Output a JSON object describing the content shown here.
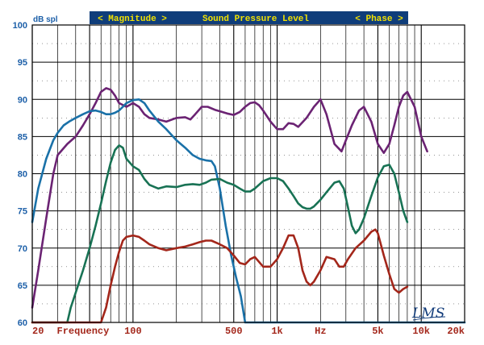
{
  "chart_data": {
    "type": "line",
    "x_scale": "log",
    "xlim": [
      20,
      20000
    ],
    "ylim": [
      60,
      100
    ],
    "ylabel": "dB spl",
    "y_ticks": [
      60,
      65,
      70,
      75,
      80,
      85,
      90,
      95,
      100
    ],
    "x_ticks": [
      {
        "label": "20",
        "x": 20
      },
      {
        "label": "Frequency",
        "x": 45
      },
      {
        "label": "100",
        "x": 100
      },
      {
        "label": "500",
        "x": 500
      },
      {
        "label": "1k",
        "x": 1000
      },
      {
        "label": "Hz",
        "x": 2000
      },
      {
        "label": "5k",
        "x": 5000
      },
      {
        "label": "10k",
        "x": 10000
      },
      {
        "label": "20k",
        "x": 20000
      }
    ],
    "banner": {
      "left": "< Magnitude >",
      "center": "Sound Pressure Level",
      "right": "< Phase >"
    },
    "logo": "LMS",
    "grid": true,
    "colors": {
      "background": "#ffffff",
      "grid": "#000000",
      "axis_labels": "#1c5fa8",
      "x_labels": "#a3261a",
      "banner_bg": "#0f3d7a",
      "banner_text": "#f2e200"
    },
    "series": [
      {
        "color": "#6b2373",
        "points": [
          [
            20,
            62
          ],
          [
            22,
            67
          ],
          [
            25,
            74
          ],
          [
            28,
            80
          ],
          [
            30,
            82.5
          ],
          [
            35,
            84
          ],
          [
            40,
            85
          ],
          [
            45,
            86.5
          ],
          [
            50,
            88
          ],
          [
            55,
            89.5
          ],
          [
            60,
            91
          ],
          [
            65,
            91.5
          ],
          [
            70,
            91.3
          ],
          [
            75,
            90.5
          ],
          [
            80,
            89.5
          ],
          [
            90,
            89
          ],
          [
            100,
            89.5
          ],
          [
            110,
            89
          ],
          [
            120,
            88
          ],
          [
            130,
            87.5
          ],
          [
            150,
            87.3
          ],
          [
            170,
            87
          ],
          [
            200,
            87.5
          ],
          [
            230,
            87.6
          ],
          [
            250,
            87.3
          ],
          [
            270,
            88
          ],
          [
            300,
            89
          ],
          [
            330,
            89
          ],
          [
            370,
            88.6
          ],
          [
            400,
            88.4
          ],
          [
            450,
            88.1
          ],
          [
            500,
            87.9
          ],
          [
            550,
            88.3
          ],
          [
            600,
            89
          ],
          [
            650,
            89.5
          ],
          [
            700,
            89.6
          ],
          [
            750,
            89.2
          ],
          [
            800,
            88.5
          ],
          [
            900,
            87
          ],
          [
            1000,
            86
          ],
          [
            1100,
            86
          ],
          [
            1200,
            86.8
          ],
          [
            1300,
            86.7
          ],
          [
            1400,
            86.3
          ],
          [
            1600,
            87.5
          ],
          [
            1800,
            89
          ],
          [
            2000,
            90
          ],
          [
            2200,
            88
          ],
          [
            2500,
            84
          ],
          [
            2800,
            83
          ],
          [
            3000,
            84.5
          ],
          [
            3300,
            86.5
          ],
          [
            3700,
            88.5
          ],
          [
            4000,
            89
          ],
          [
            4500,
            87
          ],
          [
            5000,
            84
          ],
          [
            5500,
            82.8
          ],
          [
            6000,
            84
          ],
          [
            6500,
            86.5
          ],
          [
            7000,
            89
          ],
          [
            7500,
            90.5
          ],
          [
            8000,
            91
          ],
          [
            9000,
            89
          ],
          [
            10000,
            85
          ],
          [
            11000,
            83
          ]
        ]
      },
      {
        "color": "#1a71a8",
        "points": [
          [
            20,
            73.5
          ],
          [
            22,
            78
          ],
          [
            25,
            82
          ],
          [
            28,
            84.5
          ],
          [
            30,
            85.5
          ],
          [
            33,
            86.5
          ],
          [
            36,
            87
          ],
          [
            40,
            87.5
          ],
          [
            45,
            88
          ],
          [
            50,
            88.4
          ],
          [
            55,
            88.5
          ],
          [
            60,
            88.3
          ],
          [
            65,
            88
          ],
          [
            70,
            88
          ],
          [
            75,
            88.2
          ],
          [
            80,
            88.5
          ],
          [
            85,
            89
          ],
          [
            90,
            89.5
          ],
          [
            100,
            89.9
          ],
          [
            110,
            90
          ],
          [
            120,
            89.5
          ],
          [
            130,
            88.5
          ],
          [
            150,
            87
          ],
          [
            170,
            86
          ],
          [
            200,
            84.5
          ],
          [
            230,
            83.5
          ],
          [
            260,
            82.5
          ],
          [
            290,
            82
          ],
          [
            320,
            81.8
          ],
          [
            350,
            81.7
          ],
          [
            370,
            81
          ],
          [
            400,
            78
          ],
          [
            440,
            73
          ],
          [
            480,
            69
          ],
          [
            520,
            66
          ],
          [
            560,
            63.5
          ],
          [
            600,
            60
          ],
          [
            620,
            60
          ],
          [
            20000,
            60
          ]
        ]
      },
      {
        "color": "#187254",
        "points": [
          [
            20,
            60
          ],
          [
            30,
            60
          ],
          [
            35,
            60
          ],
          [
            37,
            62
          ],
          [
            40,
            64
          ],
          [
            45,
            67
          ],
          [
            50,
            70
          ],
          [
            55,
            73
          ],
          [
            60,
            76
          ],
          [
            65,
            79
          ],
          [
            70,
            81.5
          ],
          [
            75,
            83.2
          ],
          [
            80,
            83.8
          ],
          [
            85,
            83.5
          ],
          [
            90,
            82
          ],
          [
            100,
            81
          ],
          [
            110,
            80.5
          ],
          [
            120,
            79.3
          ],
          [
            130,
            78.5
          ],
          [
            150,
            78
          ],
          [
            170,
            78.3
          ],
          [
            200,
            78.2
          ],
          [
            230,
            78.5
          ],
          [
            260,
            78.6
          ],
          [
            290,
            78.5
          ],
          [
            320,
            78.8
          ],
          [
            350,
            79.2
          ],
          [
            400,
            79.3
          ],
          [
            450,
            78.8
          ],
          [
            500,
            78.5
          ],
          [
            550,
            78
          ],
          [
            600,
            77.6
          ],
          [
            650,
            77.6
          ],
          [
            700,
            78
          ],
          [
            800,
            79
          ],
          [
            900,
            79.4
          ],
          [
            1000,
            79.4
          ],
          [
            1100,
            79
          ],
          [
            1200,
            78
          ],
          [
            1300,
            77
          ],
          [
            1400,
            76
          ],
          [
            1500,
            75.5
          ],
          [
            1600,
            75.3
          ],
          [
            1700,
            75.3
          ],
          [
            1800,
            75.6
          ],
          [
            2000,
            76.5
          ],
          [
            2200,
            77.5
          ],
          [
            2500,
            78.8
          ],
          [
            2700,
            79
          ],
          [
            2900,
            78
          ],
          [
            3100,
            75.5
          ],
          [
            3300,
            73
          ],
          [
            3500,
            72
          ],
          [
            3700,
            72.5
          ],
          [
            4000,
            74
          ],
          [
            4500,
            77
          ],
          [
            5000,
            79.5
          ],
          [
            5500,
            81
          ],
          [
            6000,
            81.2
          ],
          [
            6500,
            80
          ],
          [
            7000,
            77.5
          ],
          [
            7500,
            75
          ],
          [
            8000,
            73.5
          ]
        ]
      },
      {
        "color": "#a3261a",
        "points": [
          [
            20,
            60
          ],
          [
            40,
            60
          ],
          [
            60,
            60
          ],
          [
            65,
            62
          ],
          [
            70,
            65
          ],
          [
            75,
            67.5
          ],
          [
            80,
            69.5
          ],
          [
            85,
            71
          ],
          [
            90,
            71.5
          ],
          [
            100,
            71.7
          ],
          [
            110,
            71.5
          ],
          [
            120,
            71
          ],
          [
            130,
            70.5
          ],
          [
            150,
            70
          ],
          [
            170,
            69.7
          ],
          [
            200,
            70
          ],
          [
            230,
            70.2
          ],
          [
            260,
            70.5
          ],
          [
            290,
            70.8
          ],
          [
            320,
            71
          ],
          [
            350,
            71
          ],
          [
            400,
            70.5
          ],
          [
            450,
            70
          ],
          [
            500,
            69
          ],
          [
            550,
            68
          ],
          [
            600,
            67.8
          ],
          [
            650,
            68.5
          ],
          [
            700,
            68.8
          ],
          [
            800,
            67.5
          ],
          [
            900,
            67.5
          ],
          [
            1000,
            68.5
          ],
          [
            1100,
            70
          ],
          [
            1200,
            71.7
          ],
          [
            1300,
            71.7
          ],
          [
            1400,
            70
          ],
          [
            1500,
            67
          ],
          [
            1600,
            65.5
          ],
          [
            1700,
            65
          ],
          [
            1800,
            65.5
          ],
          [
            2000,
            67
          ],
          [
            2200,
            68.8
          ],
          [
            2500,
            68.5
          ],
          [
            2700,
            67.5
          ],
          [
            2900,
            67.5
          ],
          [
            3100,
            68.5
          ],
          [
            3500,
            70
          ],
          [
            4000,
            71
          ],
          [
            4500,
            72.2
          ],
          [
            4800,
            72.5
          ],
          [
            5000,
            72
          ],
          [
            5500,
            69
          ],
          [
            6000,
            66.5
          ],
          [
            6500,
            64.5
          ],
          [
            7000,
            64
          ],
          [
            7500,
            64.5
          ],
          [
            8000,
            64.8
          ]
        ]
      }
    ]
  }
}
